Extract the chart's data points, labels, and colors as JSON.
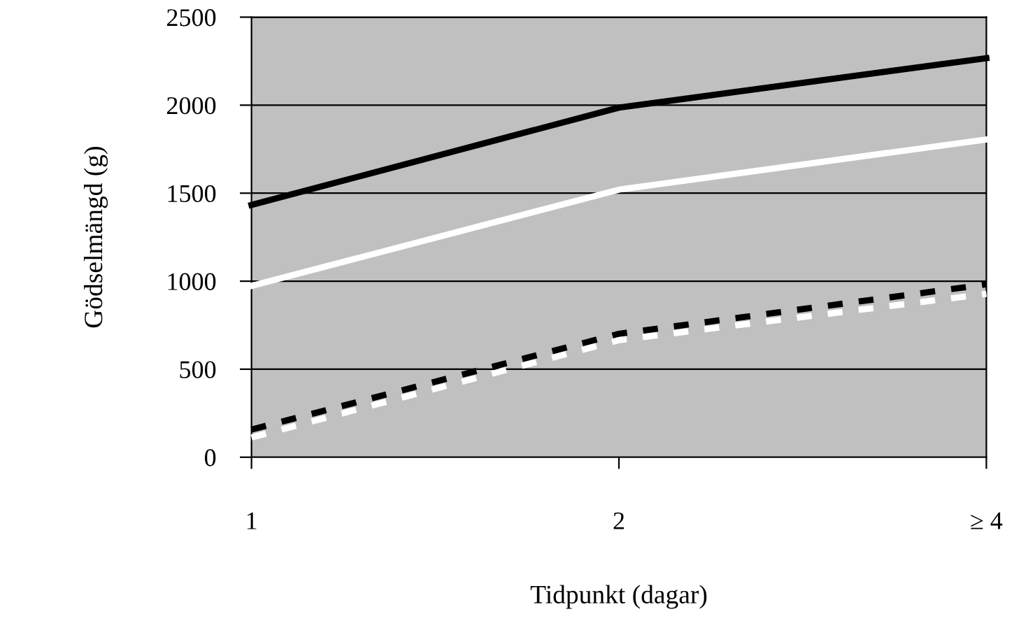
{
  "chart_data": {
    "type": "line",
    "xlabel": "Tidpunkt (dagar)",
    "ylabel": "Gödselmängd (g)",
    "categories": [
      "1",
      "2",
      "≥ 4"
    ],
    "series": [
      {
        "color": "#000000",
        "values": [
          1433,
          1986,
          2267
        ],
        "line_style": "solid"
      },
      {
        "color": "#ffffff",
        "values": [
          973,
          1520,
          1805
        ],
        "line_style": "solid"
      },
      {
        "color": "#000000",
        "values": [
          157,
          701,
          982
        ],
        "line_style": "dashed"
      },
      {
        "color": "#ffffff",
        "values": [
          112,
          665,
          928
        ],
        "line_style": "dashed"
      }
    ],
    "ylim": [
      0,
      2500
    ],
    "yticks": [
      0,
      500,
      1000,
      1500,
      2000,
      2500
    ],
    "grid": "y",
    "marker": "none"
  }
}
